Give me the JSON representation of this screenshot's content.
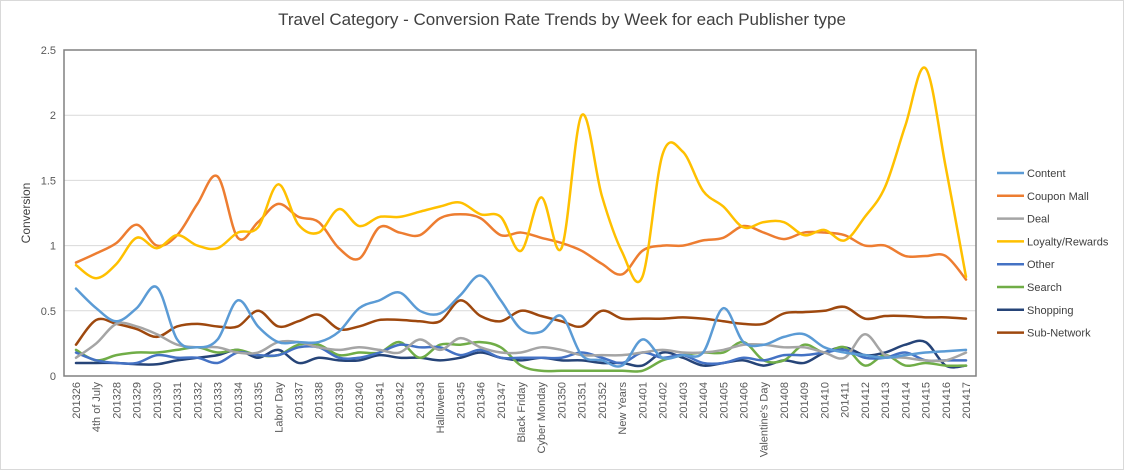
{
  "chart_data": {
    "type": "line",
    "title": "Travel Category - Conversion Rate Trends by Week for each Publisher type",
    "xlabel": "",
    "ylabel": "Conversion",
    "ylim": [
      0,
      2.5
    ],
    "yticks": [
      "0",
      "0.5",
      "1",
      "1.5",
      "2",
      "2.5"
    ],
    "ytick_values": [
      0,
      0.5,
      1,
      1.5,
      2,
      2.5
    ],
    "grid": true,
    "smooth": true,
    "legend_position": "right",
    "categories": [
      "201326",
      "4th of July",
      "201328",
      "201329",
      "201330",
      "201331",
      "201332",
      "201333",
      "201334",
      "201335",
      "Labor Day",
      "201337",
      "201338",
      "201339",
      "201340",
      "201341",
      "201342",
      "201343",
      "Halloween",
      "201345",
      "201346",
      "201347",
      "Black Friday",
      "Cyber Monday",
      "201350",
      "201351",
      "201352",
      "New Years",
      "201401",
      "201402",
      "201403",
      "201404",
      "201405",
      "201406",
      "Valentine's Day",
      "201408",
      "201409",
      "201410",
      "201411",
      "201412",
      "201413",
      "201414",
      "201415",
      "201416",
      "201417"
    ],
    "series": [
      {
        "name": "Content",
        "color": "#5b9bd5",
        "values": [
          0.67,
          0.52,
          0.42,
          0.52,
          0.68,
          0.28,
          0.22,
          0.28,
          0.58,
          0.38,
          0.26,
          0.26,
          0.26,
          0.34,
          0.52,
          0.58,
          0.64,
          0.5,
          0.48,
          0.62,
          0.77,
          0.58,
          0.36,
          0.34,
          0.46,
          0.16,
          0.12,
          0.08,
          0.28,
          0.14,
          0.16,
          0.18,
          0.52,
          0.26,
          0.24,
          0.3,
          0.32,
          0.22,
          0.18,
          0.16,
          0.14,
          0.16,
          0.18,
          0.19,
          0.2
        ]
      },
      {
        "name": "Coupon Mall",
        "color": "#ed7d31",
        "values": [
          0.87,
          0.94,
          1.02,
          1.16,
          1.0,
          1.08,
          1.32,
          1.53,
          1.06,
          1.18,
          1.32,
          1.22,
          1.18,
          0.98,
          0.9,
          1.14,
          1.1,
          1.08,
          1.21,
          1.24,
          1.21,
          1.08,
          1.1,
          1.06,
          1.02,
          0.96,
          0.86,
          0.78,
          0.96,
          1.0,
          1.0,
          1.04,
          1.06,
          1.15,
          1.1,
          1.05,
          1.1,
          1.1,
          1.08,
          1.0,
          1.0,
          0.92,
          0.92,
          0.92,
          0.74
        ]
      },
      {
        "name": "Deal",
        "color": "#a5a5a5",
        "values": [
          0.14,
          0.25,
          0.4,
          0.38,
          0.32,
          0.24,
          0.22,
          0.22,
          0.18,
          0.18,
          0.26,
          0.26,
          0.22,
          0.2,
          0.22,
          0.2,
          0.18,
          0.28,
          0.2,
          0.29,
          0.22,
          0.18,
          0.18,
          0.22,
          0.2,
          0.16,
          0.16,
          0.16,
          0.18,
          0.2,
          0.18,
          0.18,
          0.2,
          0.24,
          0.24,
          0.22,
          0.22,
          0.18,
          0.14,
          0.32,
          0.16,
          0.14,
          0.12,
          0.12,
          0.18
        ]
      },
      {
        "name": "Loyalty/Rewards",
        "color": "#ffc000",
        "values": [
          0.85,
          0.75,
          0.86,
          1.06,
          0.98,
          1.08,
          1.0,
          0.98,
          1.1,
          1.14,
          1.47,
          1.16,
          1.1,
          1.28,
          1.15,
          1.22,
          1.22,
          1.26,
          1.3,
          1.33,
          1.24,
          1.22,
          0.96,
          1.37,
          0.98,
          2.0,
          1.38,
          0.95,
          0.76,
          1.7,
          1.72,
          1.42,
          1.3,
          1.14,
          1.18,
          1.18,
          1.08,
          1.12,
          1.04,
          1.22,
          1.45,
          1.92,
          2.36,
          1.6,
          0.76
        ]
      },
      {
        "name": "Other",
        "color": "#4472c4",
        "values": [
          0.18,
          0.12,
          0.1,
          0.1,
          0.16,
          0.14,
          0.14,
          0.1,
          0.18,
          0.16,
          0.16,
          0.22,
          0.22,
          0.14,
          0.14,
          0.18,
          0.24,
          0.22,
          0.22,
          0.16,
          0.2,
          0.14,
          0.14,
          0.14,
          0.14,
          0.18,
          0.14,
          0.1,
          0.18,
          0.14,
          0.16,
          0.1,
          0.1,
          0.14,
          0.12,
          0.16,
          0.16,
          0.18,
          0.2,
          0.14,
          0.14,
          0.18,
          0.12,
          0.12,
          0.12
        ]
      },
      {
        "name": "Search",
        "color": "#70ad47",
        "values": [
          0.2,
          0.12,
          0.16,
          0.18,
          0.18,
          0.2,
          0.22,
          0.18,
          0.2,
          0.16,
          0.16,
          0.24,
          0.24,
          0.16,
          0.18,
          0.18,
          0.26,
          0.14,
          0.24,
          0.24,
          0.26,
          0.22,
          0.08,
          0.04,
          0.04,
          0.04,
          0.04,
          0.04,
          0.04,
          0.12,
          0.16,
          0.18,
          0.18,
          0.26,
          0.12,
          0.12,
          0.24,
          0.18,
          0.22,
          0.08,
          0.16,
          0.08,
          0.1,
          0.08,
          0.08
        ]
      },
      {
        "name": "Shopping",
        "color": "#264478",
        "values": [
          0.1,
          0.1,
          0.1,
          0.09,
          0.09,
          0.12,
          0.14,
          0.16,
          0.2,
          0.14,
          0.2,
          0.1,
          0.14,
          0.12,
          0.12,
          0.16,
          0.14,
          0.14,
          0.12,
          0.14,
          0.18,
          0.14,
          0.12,
          0.14,
          0.12,
          0.12,
          0.1,
          0.1,
          0.08,
          0.18,
          0.14,
          0.08,
          0.1,
          0.12,
          0.08,
          0.12,
          0.1,
          0.18,
          0.22,
          0.16,
          0.18,
          0.24,
          0.26,
          0.08,
          0.08
        ]
      },
      {
        "name": "Sub-Network",
        "color": "#9e480e",
        "values": [
          0.24,
          0.43,
          0.4,
          0.36,
          0.3,
          0.38,
          0.4,
          0.38,
          0.38,
          0.5,
          0.38,
          0.42,
          0.47,
          0.36,
          0.38,
          0.43,
          0.43,
          0.42,
          0.42,
          0.58,
          0.46,
          0.42,
          0.5,
          0.46,
          0.42,
          0.38,
          0.5,
          0.44,
          0.44,
          0.44,
          0.45,
          0.44,
          0.42,
          0.4,
          0.4,
          0.48,
          0.49,
          0.5,
          0.53,
          0.44,
          0.46,
          0.46,
          0.45,
          0.45,
          0.44
        ]
      }
    ]
  }
}
